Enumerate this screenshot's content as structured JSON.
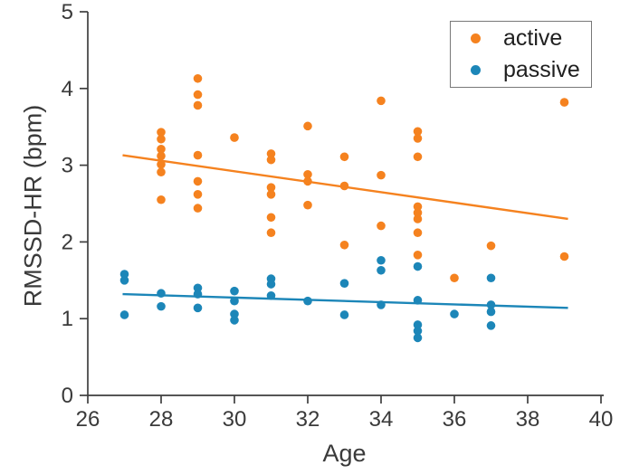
{
  "chart_data": {
    "type": "scatter",
    "title": "",
    "xlabel": "Age",
    "ylabel": "RMSSD-HR (bpm)",
    "xlim": [
      26,
      40
    ],
    "ylim": [
      0,
      5
    ],
    "x_ticks": [
      26,
      28,
      30,
      32,
      34,
      36,
      38,
      40
    ],
    "y_ticks": [
      0,
      1,
      2,
      3,
      4,
      5
    ],
    "grid": false,
    "axis_color": "#3f3f3f",
    "tick_label_color": "#3a3a3a",
    "legend": {
      "position": "top-right",
      "entries": [
        "active",
        "passive"
      ]
    },
    "series": [
      {
        "name": "active",
        "color": "#F5821F",
        "marker": "circle",
        "points": [
          [
            28,
            3.43
          ],
          [
            28,
            3.34
          ],
          [
            28,
            3.21
          ],
          [
            28,
            3.12
          ],
          [
            28,
            3.01
          ],
          [
            28,
            2.91
          ],
          [
            28,
            2.55
          ],
          [
            29,
            4.13
          ],
          [
            29,
            3.92
          ],
          [
            29,
            3.78
          ],
          [
            29,
            3.13
          ],
          [
            29,
            2.79
          ],
          [
            29,
            2.62
          ],
          [
            29,
            2.44
          ],
          [
            30,
            3.36
          ],
          [
            31,
            3.15
          ],
          [
            31,
            3.07
          ],
          [
            31,
            2.71
          ],
          [
            31,
            2.62
          ],
          [
            31,
            2.32
          ],
          [
            31,
            2.12
          ],
          [
            32,
            3.51
          ],
          [
            32,
            2.88
          ],
          [
            32,
            2.79
          ],
          [
            32,
            2.48
          ],
          [
            33,
            3.11
          ],
          [
            33,
            2.73
          ],
          [
            33,
            1.96
          ],
          [
            34,
            3.84
          ],
          [
            34,
            2.87
          ],
          [
            34,
            2.21
          ],
          [
            35,
            3.44
          ],
          [
            35,
            3.35
          ],
          [
            35,
            3.11
          ],
          [
            35,
            2.46
          ],
          [
            35,
            2.38
          ],
          [
            35,
            2.3
          ],
          [
            35,
            2.12
          ],
          [
            35,
            1.83
          ],
          [
            36,
            1.53
          ],
          [
            37,
            1.95
          ],
          [
            39,
            3.82
          ],
          [
            39,
            1.81
          ]
        ],
        "trend_line": {
          "x": [
            26.95,
            39.1
          ],
          "y": [
            3.13,
            2.3
          ]
        }
      },
      {
        "name": "passive",
        "color": "#1C86B8",
        "marker": "circle",
        "points": [
          [
            27,
            1.58
          ],
          [
            27,
            1.5
          ],
          [
            27,
            1.05
          ],
          [
            28,
            1.33
          ],
          [
            28,
            1.16
          ],
          [
            29,
            1.4
          ],
          [
            29,
            1.32
          ],
          [
            29,
            1.14
          ],
          [
            30,
            1.36
          ],
          [
            30,
            1.23
          ],
          [
            30,
            1.06
          ],
          [
            30,
            0.98
          ],
          [
            31,
            1.52
          ],
          [
            31,
            1.45
          ],
          [
            31,
            1.3
          ],
          [
            32,
            1.23
          ],
          [
            33,
            1.46
          ],
          [
            33,
            1.05
          ],
          [
            34,
            1.76
          ],
          [
            34,
            1.63
          ],
          [
            34,
            1.18
          ],
          [
            35,
            1.68
          ],
          [
            35,
            1.24
          ],
          [
            35,
            0.92
          ],
          [
            35,
            0.84
          ],
          [
            35,
            0.75
          ],
          [
            36,
            1.06
          ],
          [
            37,
            1.53
          ],
          [
            37,
            1.18
          ],
          [
            37,
            1.09
          ],
          [
            37,
            0.91
          ]
        ],
        "trend_line": {
          "x": [
            26.95,
            39.1
          ],
          "y": [
            1.32,
            1.14
          ]
        }
      }
    ]
  }
}
